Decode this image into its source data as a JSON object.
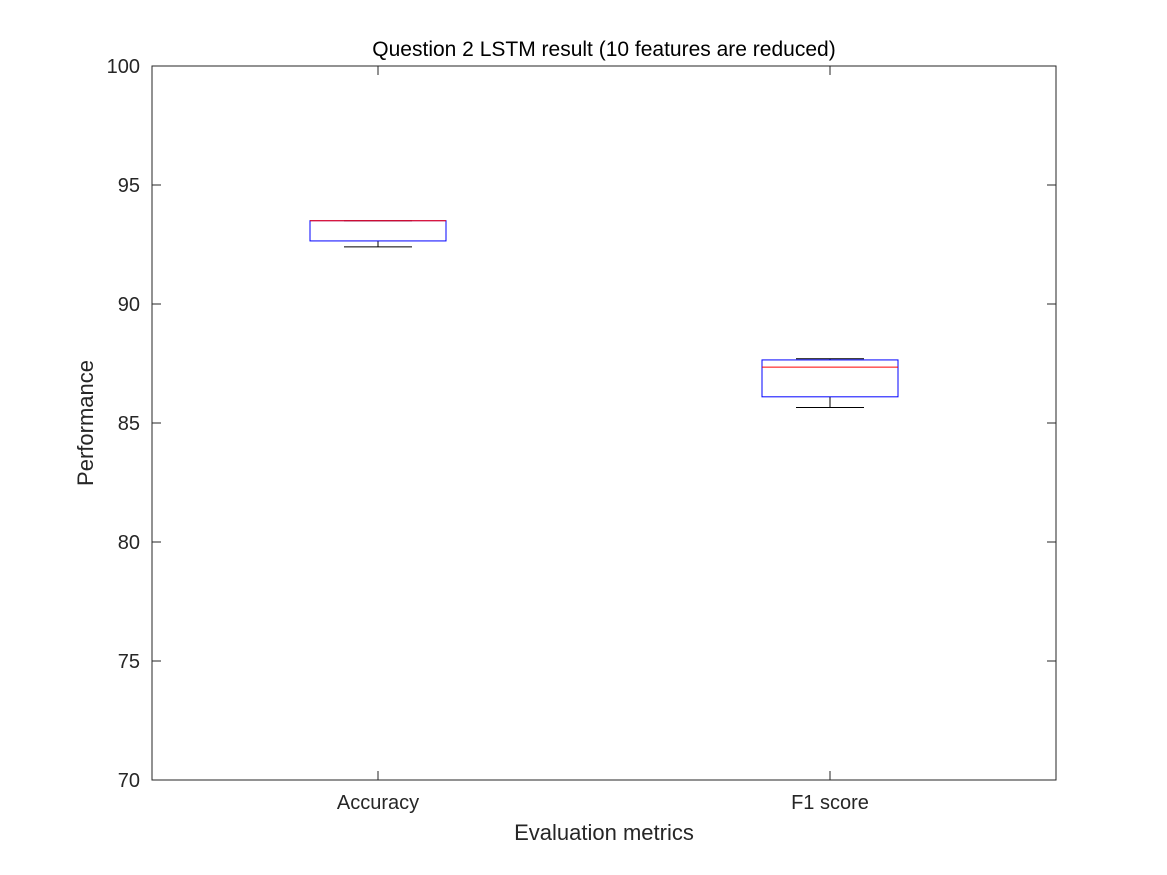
{
  "chart_data": {
    "type": "boxplot",
    "title": "Question 2 LSTM result (10 features are reduced)",
    "xlabel": "Evaluation metrics",
    "ylabel": "Performance",
    "ylim": [
      70,
      100
    ],
    "yticks": [
      70,
      75,
      80,
      85,
      90,
      95,
      100
    ],
    "categories": [
      "Accuracy",
      "F1 score"
    ],
    "boxes": [
      {
        "category": "Accuracy",
        "whisker_low": 92.4,
        "q1": 92.65,
        "median": 93.5,
        "q3": 93.5,
        "whisker_high": 93.5
      },
      {
        "category": "F1 score",
        "whisker_low": 85.65,
        "q1": 86.1,
        "median": 87.35,
        "q3": 87.65,
        "whisker_high": 87.7
      }
    ],
    "grid": false,
    "colors": {
      "box": "#0000ff",
      "median": "#ff0000",
      "whisker": "#000000",
      "axis": "#262626"
    }
  }
}
